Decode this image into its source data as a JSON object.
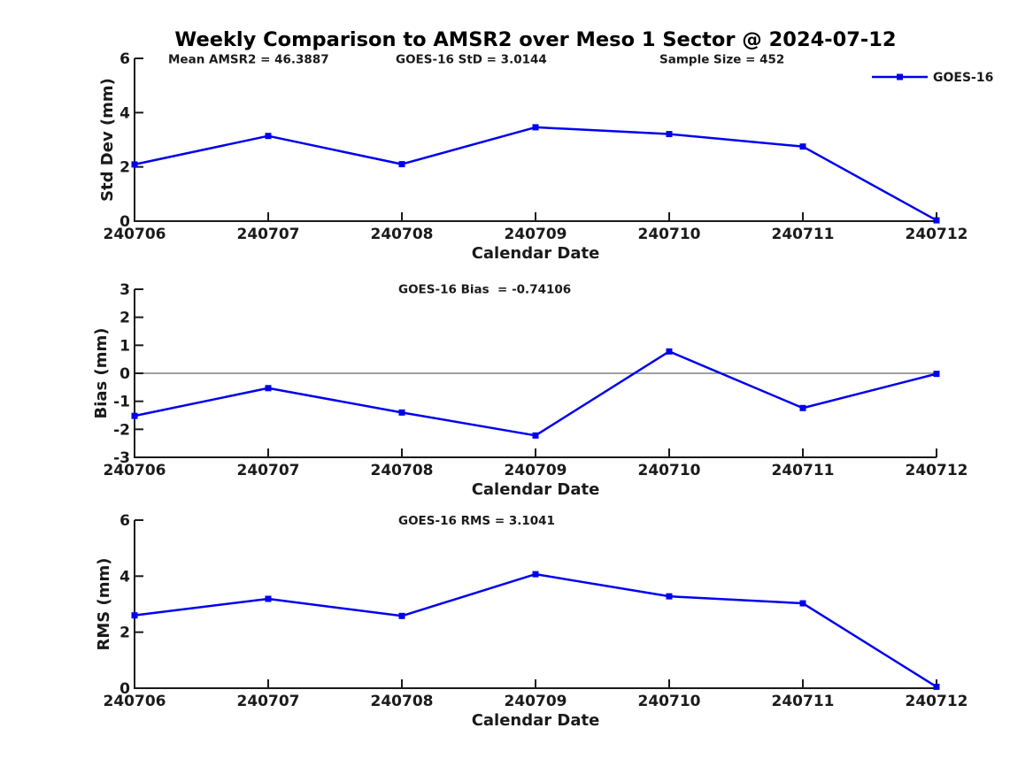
{
  "title": "Weekly Comparison to AMSR2 over Meso 1 Sector @ 2024-07-12",
  "colors": {
    "series": "#0000EE",
    "axis": "#1a1a1a",
    "zero_line": "#808080",
    "background": "#FFFFFF"
  },
  "legend": {
    "label": "GOES-16"
  },
  "x_axis_label": "Calendar Date",
  "chart_data": [
    {
      "type": "line",
      "name": "std-dev-weekly",
      "ylabel": "Std Dev (mm)",
      "xlabel": "Calendar Date",
      "categories": [
        "240706",
        "240707",
        "240708",
        "240709",
        "240710",
        "240711",
        "240712"
      ],
      "series": [
        {
          "name": "GOES-16",
          "values": [
            2.09,
            3.14,
            2.1,
            3.46,
            3.21,
            2.75,
            0.03
          ]
        }
      ],
      "ylim": [
        0,
        6
      ],
      "yticks": [
        0,
        2,
        4,
        6
      ],
      "annotations": [
        "Mean AMSR2 = 46.3887",
        "GOES-16 StD = 3.0144",
        "Sample Size = 452"
      ],
      "legend_position": "top-right",
      "grid": false
    },
    {
      "type": "line",
      "name": "bias-weekly",
      "ylabel": "Bias (mm)",
      "xlabel": "Calendar Date",
      "categories": [
        "240706",
        "240707",
        "240708",
        "240709",
        "240710",
        "240711",
        "240712"
      ],
      "series": [
        {
          "name": "GOES-16",
          "values": [
            -1.52,
            -0.53,
            -1.4,
            -2.22,
            0.78,
            -1.24,
            -0.02
          ]
        }
      ],
      "ylim": [
        -3,
        3
      ],
      "yticks": [
        3,
        2,
        1,
        0,
        -1,
        -2,
        -3
      ],
      "annotations": [
        "GOES-16 Bias  = -0.74106"
      ],
      "zero_line": true,
      "grid": false
    },
    {
      "type": "line",
      "name": "rms-weekly",
      "ylabel": "RMS (mm)",
      "xlabel": "Calendar Date",
      "categories": [
        "240706",
        "240707",
        "240708",
        "240709",
        "240710",
        "240711",
        "240712"
      ],
      "series": [
        {
          "name": "GOES-16",
          "values": [
            2.6,
            3.19,
            2.58,
            4.07,
            3.28,
            3.03,
            0.05
          ]
        }
      ],
      "ylim": [
        0,
        6
      ],
      "yticks": [
        0,
        2,
        4,
        6
      ],
      "annotations": [
        "GOES-16 RMS = 3.1041"
      ],
      "grid": false
    }
  ]
}
